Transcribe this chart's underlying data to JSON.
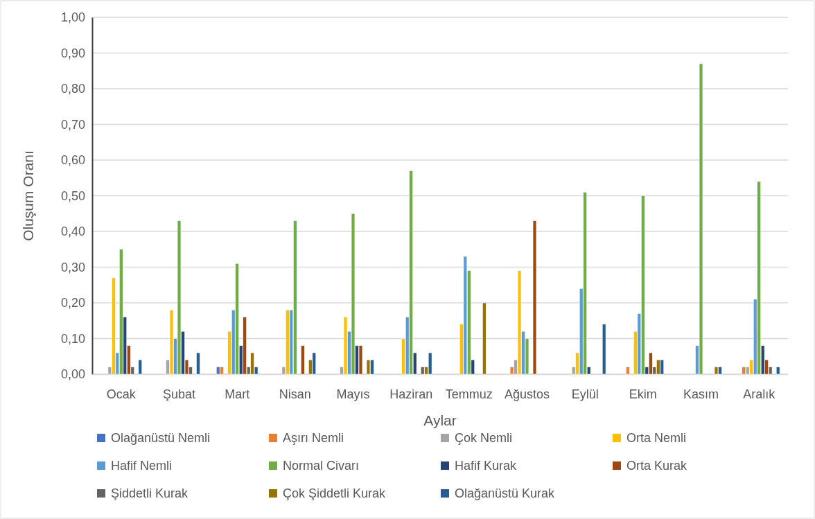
{
  "chart_data": {
    "type": "bar",
    "xlabel": "Aylar",
    "ylabel": "Oluşum Oranı",
    "categories": [
      "Ocak",
      "Şubat",
      "Mart",
      "Nisan",
      "Mayıs",
      "Haziran",
      "Temmuz",
      "Ağustos",
      "Eylül",
      "Ekim",
      "Kasım",
      "Aralık"
    ],
    "series": [
      {
        "name": "Olağanüstü Nemli",
        "color": "#4472c4",
        "values": [
          0,
          0,
          0.02,
          0,
          0,
          0,
          0,
          0,
          0,
          0,
          0,
          0
        ]
      },
      {
        "name": "Aşırı Nemli",
        "color": "#ed7d31",
        "values": [
          0,
          0,
          0.02,
          0,
          0,
          0,
          0,
          0.02,
          0,
          0.02,
          0,
          0.02
        ]
      },
      {
        "name": "Çok Nemli",
        "color": "#a5a5a5",
        "values": [
          0.02,
          0.04,
          0,
          0.02,
          0.02,
          0,
          0,
          0.04,
          0.02,
          0,
          0,
          0.02
        ]
      },
      {
        "name": "Orta Nemli",
        "color": "#ffc000",
        "values": [
          0.27,
          0.18,
          0.12,
          0.18,
          0.16,
          0.1,
          0.14,
          0.29,
          0.06,
          0.12,
          0,
          0.04
        ]
      },
      {
        "name": "Hafif Nemli",
        "color": "#5b9bd5",
        "values": [
          0.06,
          0.1,
          0.18,
          0.18,
          0.12,
          0.16,
          0.33,
          0.12,
          0.24,
          0.17,
          0.08,
          0.21
        ]
      },
      {
        "name": "Normal Civarı",
        "color": "#70ad47",
        "values": [
          0.35,
          0.43,
          0.31,
          0.43,
          0.45,
          0.57,
          0.29,
          0.1,
          0.51,
          0.5,
          0.87,
          0.54
        ]
      },
      {
        "name": "Hafif Kurak",
        "color": "#264478",
        "values": [
          0.16,
          0.12,
          0.08,
          0,
          0.08,
          0.06,
          0.04,
          0,
          0.02,
          0.02,
          0,
          0.08
        ]
      },
      {
        "name": "Orta Kurak",
        "color": "#9e480e",
        "values": [
          0.08,
          0.04,
          0.16,
          0.08,
          0.08,
          0,
          0,
          0.43,
          0,
          0.06,
          0,
          0.04
        ]
      },
      {
        "name": "Şiddetli Kurak",
        "color": "#636363",
        "values": [
          0.02,
          0.02,
          0.02,
          0,
          0,
          0.02,
          0,
          0,
          0,
          0.02,
          0,
          0.02
        ]
      },
      {
        "name": "Çok Şiddetli Kurak",
        "color": "#997300",
        "values": [
          0,
          0,
          0.06,
          0.04,
          0.04,
          0.02,
          0.2,
          0,
          0,
          0.04,
          0.02,
          0
        ]
      },
      {
        "name": "Olağanüstü Kurak",
        "color": "#255e91",
        "values": [
          0.04,
          0.06,
          0.02,
          0.06,
          0.04,
          0.06,
          0,
          0,
          0.14,
          0.04,
          0.02,
          0.02
        ]
      }
    ],
    "ylim": [
      0,
      1
    ],
    "yticks": [
      {
        "value": 0,
        "label": "0,00"
      },
      {
        "value": 0.1,
        "label": "0,10"
      },
      {
        "value": 0.2,
        "label": "0,20"
      },
      {
        "value": 0.3,
        "label": "0,30"
      },
      {
        "value": 0.4,
        "label": "0,40"
      },
      {
        "value": 0.5,
        "label": "0,50"
      },
      {
        "value": 0.6,
        "label": "0,60"
      },
      {
        "value": 0.7,
        "label": "0,70"
      },
      {
        "value": 0.8,
        "label": "0,80"
      },
      {
        "value": 0.9,
        "label": "0,90"
      },
      {
        "value": 1,
        "label": "1,00"
      }
    ],
    "grid": "y",
    "legend": "bottom"
  }
}
